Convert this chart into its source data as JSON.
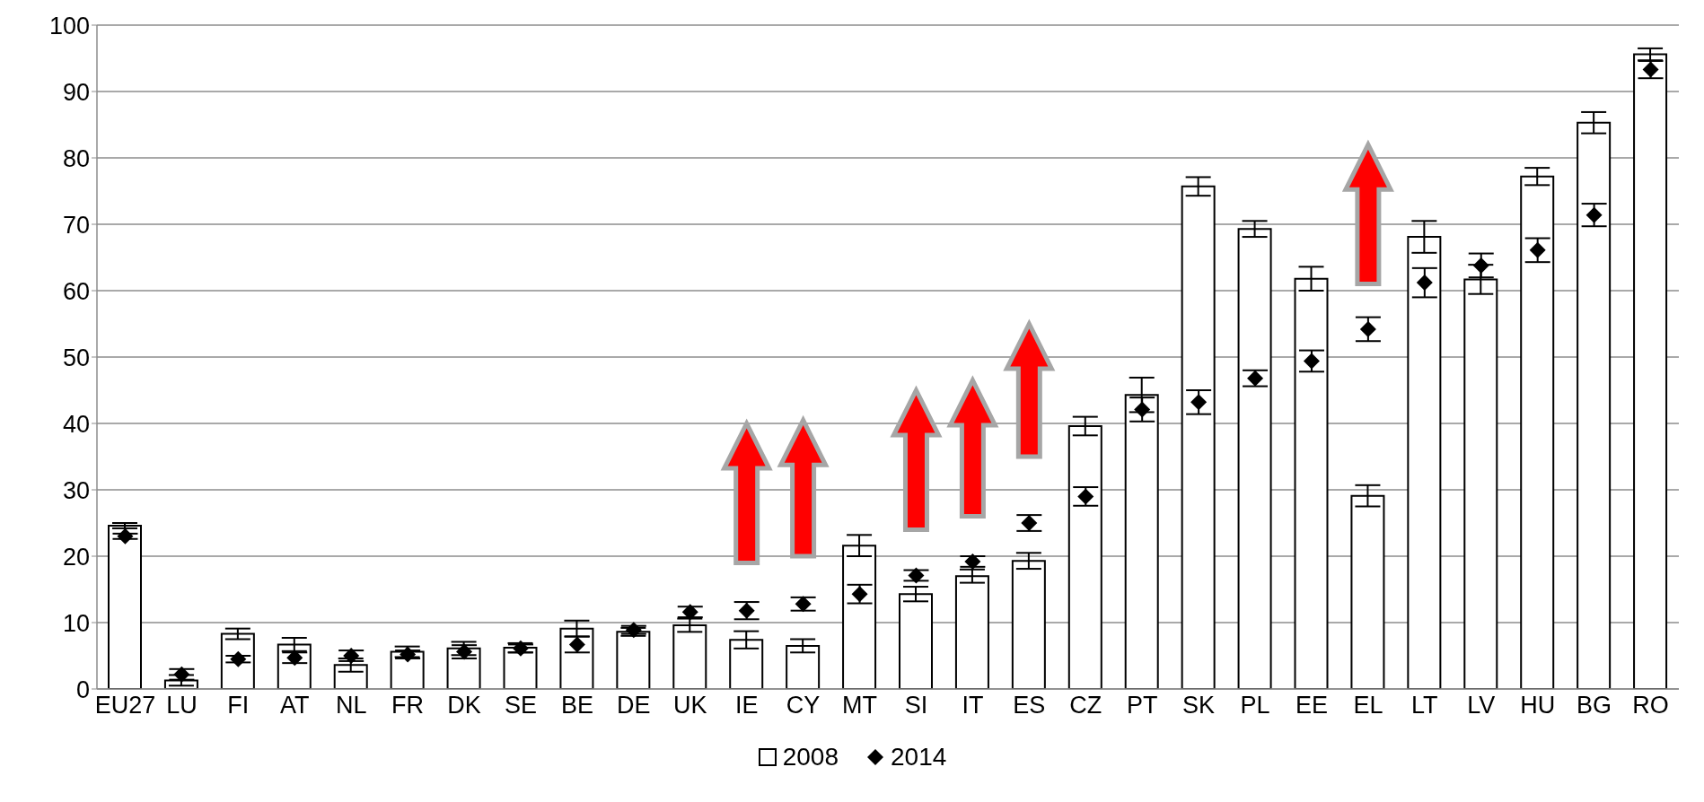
{
  "chart_data": {
    "type": "bar",
    "categories": [
      "EU27",
      "LU",
      "FI",
      "AT",
      "NL",
      "FR",
      "DK",
      "SE",
      "BE",
      "DE",
      "UK",
      "IE",
      "CY",
      "MT",
      "SI",
      "IT",
      "ES",
      "CZ",
      "PT",
      "SK",
      "PL",
      "EE",
      "EL",
      "LT",
      "LV",
      "HU",
      "BG",
      "RO"
    ],
    "series": [
      {
        "name": "2008",
        "color": "#ffffff",
        "values": [
          24.6,
          1.3,
          8.3,
          6.7,
          3.6,
          5.6,
          6.1,
          6.2,
          9.1,
          8.6,
          9.6,
          7.4,
          6.5,
          21.6,
          14.3,
          17.0,
          19.3,
          39.6,
          44.3,
          75.7,
          69.3,
          61.8,
          29.1,
          68.1,
          61.7,
          77.2,
          85.3,
          95.6
        ],
        "errors": [
          0.4,
          0.8,
          0.8,
          1.0,
          1.0,
          0.8,
          1.0,
          0.7,
          1.2,
          0.6,
          1.0,
          1.3,
          1.0,
          1.6,
          1.1,
          1.0,
          1.2,
          1.4,
          2.6,
          1.4,
          1.2,
          1.8,
          1.6,
          2.4,
          2.2,
          1.3,
          1.6,
          0.9
        ]
      },
      {
        "name": "2014",
        "type": "scatter",
        "color": "#000000",
        "marker": "diamond",
        "values": [
          23.0,
          2.2,
          4.5,
          4.7,
          5.0,
          5.2,
          5.6,
          6.1,
          6.7,
          8.9,
          11.6,
          11.8,
          12.8,
          14.3,
          17.1,
          19.2,
          25.0,
          29.0,
          42.1,
          43.2,
          46.8,
          49.4,
          54.2,
          61.2,
          63.8,
          66.1,
          71.4,
          93.3
        ],
        "errors": [
          0.4,
          0.8,
          0.5,
          0.8,
          0.8,
          0.6,
          1.0,
          0.6,
          1.2,
          0.6,
          0.8,
          1.3,
          1.0,
          1.4,
          0.8,
          0.8,
          1.2,
          1.4,
          1.8,
          1.8,
          1.2,
          1.6,
          1.8,
          2.2,
          1.8,
          1.8,
          1.7,
          1.3
        ]
      }
    ],
    "ylim": [
      0,
      100
    ],
    "yticks": [
      0,
      10,
      20,
      30,
      40,
      50,
      60,
      70,
      80,
      90,
      100
    ],
    "grid": "y",
    "legend": "bottom"
  }
}
